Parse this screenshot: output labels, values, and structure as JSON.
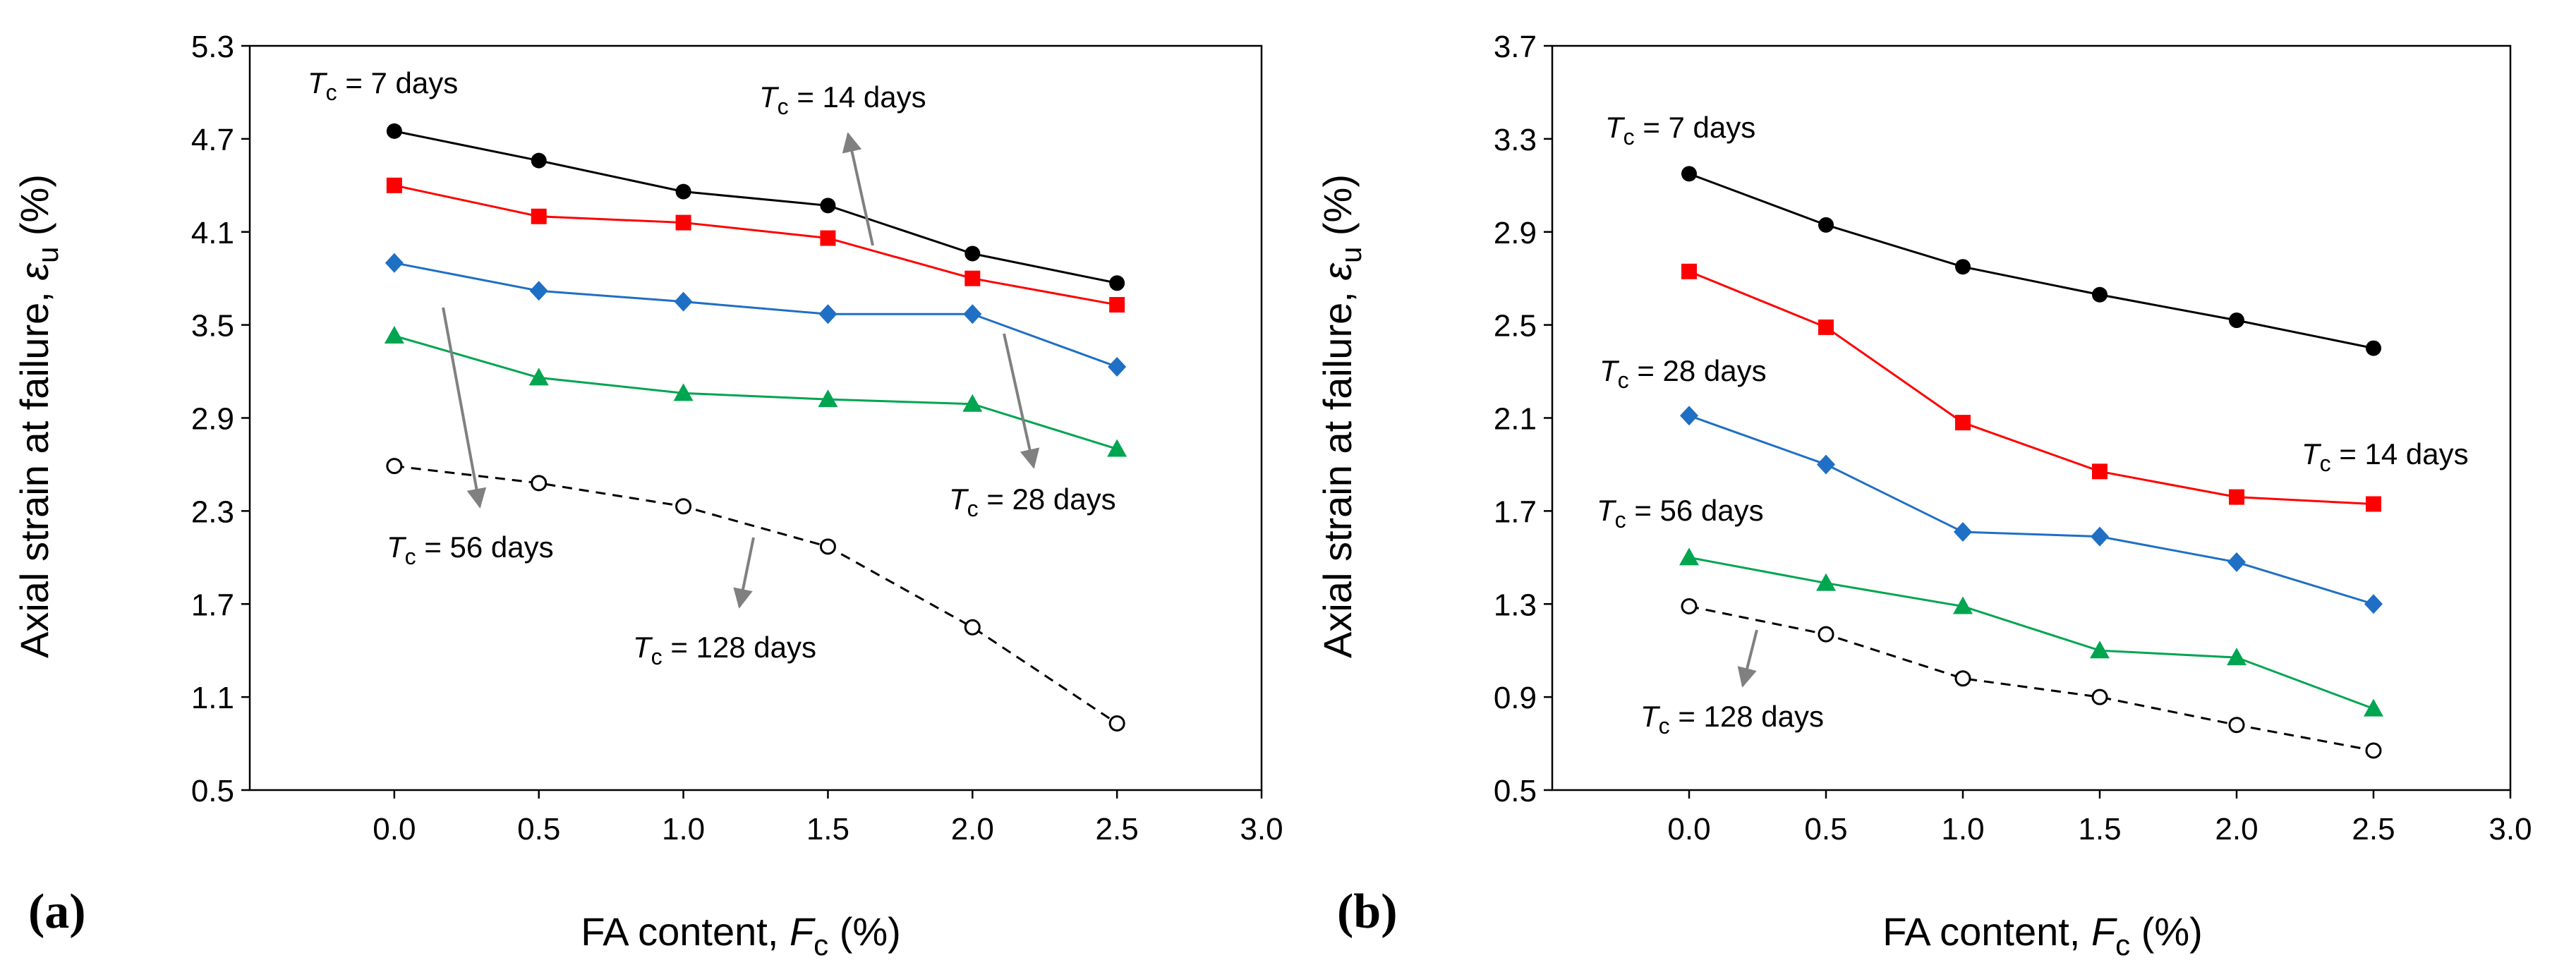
{
  "chart_data": [
    {
      "type": "line",
      "panel_label": "(a)",
      "xlabel": "FA content, ",
      "xlabel_var": "F",
      "xlabel_sub": "c",
      "xlabel_unit": " (%)",
      "ylabel": "Axial strain at failure, ",
      "ylabel_var": "ε",
      "ylabel_sub": "u",
      "ylabel_unit": " (%)",
      "xlim": [
        -0.5,
        3.0
      ],
      "ylim": [
        0.5,
        5.3
      ],
      "xticks": [
        "0.0",
        "0.5",
        "1.0",
        "1.5",
        "2.0",
        "2.5",
        "3.0"
      ],
      "yticks": [
        "0.5",
        "1.1",
        "1.7",
        "2.3",
        "2.9",
        "3.5",
        "4.1",
        "4.7",
        "5.3"
      ],
      "x": [
        0.0,
        0.5,
        1.0,
        1.5,
        2.0,
        2.5
      ],
      "series": [
        {
          "name": "T_c = 7 days",
          "color": "#000000",
          "marker": "circle",
          "dash": false,
          "values": [
            4.75,
            4.56,
            4.36,
            4.27,
            3.96,
            3.77
          ]
        },
        {
          "name": "T_c = 14 days",
          "color": "#ff0000",
          "marker": "square",
          "dash": false,
          "values": [
            4.4,
            4.2,
            4.16,
            4.06,
            3.8,
            3.63
          ]
        },
        {
          "name": "T_c = 28 days",
          "color": "#1f6fc4",
          "marker": "diamond",
          "dash": false,
          "values": [
            3.9,
            3.72,
            3.65,
            3.57,
            3.57,
            3.23
          ]
        },
        {
          "name": "T_c = 56 days",
          "color": "#00a550",
          "marker": "triangle",
          "dash": false,
          "values": [
            3.43,
            3.16,
            3.06,
            3.02,
            2.99,
            2.7
          ]
        },
        {
          "name": "T_c = 128 days",
          "color": "#000000",
          "marker": "open-circle",
          "dash": true,
          "values": [
            2.59,
            2.48,
            2.33,
            2.07,
            1.55,
            0.93
          ]
        }
      ],
      "annotations": [
        {
          "var": "T",
          "sub": "c",
          "text": " = 7 days"
        },
        {
          "var": "T",
          "sub": "c",
          "text": " = 14 days"
        },
        {
          "var": "T",
          "sub": "c",
          "text": " = 28 days"
        },
        {
          "var": "T",
          "sub": "c",
          "text": " = 56 days"
        },
        {
          "var": "T",
          "sub": "c",
          "text": " = 128 days"
        }
      ]
    },
    {
      "type": "line",
      "panel_label": "(b)",
      "xlabel": "FA content, ",
      "xlabel_var": "F",
      "xlabel_sub": "c",
      "xlabel_unit": " (%)",
      "ylabel": "Axial strain at failure, ",
      "ylabel_var": "ε",
      "ylabel_sub": "u",
      "ylabel_unit": " (%)",
      "xlim": [
        -0.5,
        3.0
      ],
      "ylim": [
        0.5,
        3.7
      ],
      "xticks": [
        "0.0",
        "0.5",
        "1.0",
        "1.5",
        "2.0",
        "2.5",
        "3.0"
      ],
      "yticks": [
        "0.5",
        "0.9",
        "1.3",
        "1.7",
        "2.1",
        "2.5",
        "2.9",
        "3.3",
        "3.7"
      ],
      "x": [
        0.0,
        0.5,
        1.0,
        1.5,
        2.0,
        2.5
      ],
      "series": [
        {
          "name": "T_c = 7 days",
          "color": "#000000",
          "marker": "circle",
          "dash": false,
          "values": [
            3.15,
            2.93,
            2.75,
            2.63,
            2.52,
            2.4
          ]
        },
        {
          "name": "T_c = 14 days",
          "color": "#ff0000",
          "marker": "square",
          "dash": false,
          "values": [
            2.73,
            2.49,
            2.08,
            1.87,
            1.76,
            1.73
          ]
        },
        {
          "name": "T_c = 28 days",
          "color": "#1f6fc4",
          "marker": "diamond",
          "dash": false,
          "values": [
            2.11,
            1.9,
            1.61,
            1.59,
            1.48,
            1.3
          ]
        },
        {
          "name": "T_c = 56 days",
          "color": "#00a550",
          "marker": "triangle",
          "dash": false,
          "values": [
            1.5,
            1.39,
            1.29,
            1.1,
            1.07,
            0.85
          ]
        },
        {
          "name": "T_c = 128 days",
          "color": "#000000",
          "marker": "open-circle",
          "dash": true,
          "values": [
            1.29,
            1.17,
            0.98,
            0.9,
            0.78,
            0.67
          ]
        }
      ],
      "annotations": [
        {
          "var": "T",
          "sub": "c",
          "text": " = 7 days"
        },
        {
          "var": "T",
          "sub": "c",
          "text": " = 14 days"
        },
        {
          "var": "T",
          "sub": "c",
          "text": " = 28 days"
        },
        {
          "var": "T",
          "sub": "c",
          "text": " = 56 days"
        },
        {
          "var": "T",
          "sub": "c",
          "text": " = 128 days"
        }
      ]
    }
  ]
}
